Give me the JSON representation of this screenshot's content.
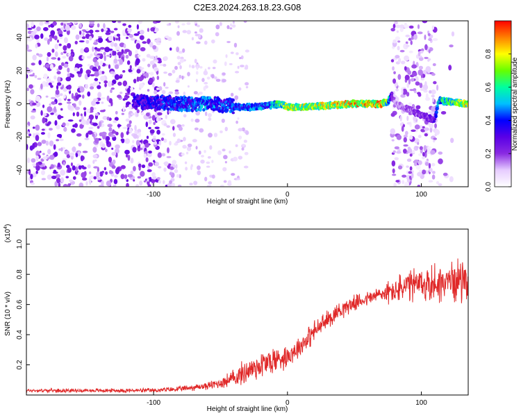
{
  "figure": {
    "title": "C2E3.2024.263.18.23.G08"
  },
  "chart_data": [
    {
      "type": "heatmap",
      "title": "C2E3.2024.263.18.23.G08",
      "xlabel": "Height of straight line (km)",
      "ylabel": "Frequency (Hz)",
      "xlim": [
        -195,
        135
      ],
      "ylim": [
        -50,
        50
      ],
      "x_ticks": [
        -100,
        0,
        100
      ],
      "y_ticks": [
        -40,
        -20,
        0,
        20,
        40
      ],
      "colorbar": {
        "label": "Normalized spectral amplitude",
        "range": [
          0,
          1
        ],
        "ticks": [
          0.0,
          0.2,
          0.4,
          0.6,
          0.8
        ],
        "tick_labels": [
          "0.0",
          "0.2",
          "0.4",
          "0.6",
          "0.8"
        ],
        "colormap": [
          "#ffffff",
          "#e6ccff",
          "#8a2be2",
          "#5a00e6",
          "#0000ff",
          "#00bfff",
          "#00ffa0",
          "#66ff00",
          "#ffff00",
          "#ff8000",
          "#ff0000"
        ]
      },
      "signal_track": {
        "x": [
          -115,
          -100,
          -80,
          -60,
          -45,
          -35,
          -25,
          -15,
          -5,
          0,
          10,
          30,
          50,
          70,
          75,
          78,
          80,
          110,
          113,
          135
        ],
        "y": [
          1,
          1,
          0,
          0,
          -1,
          -2,
          -2,
          -1,
          0,
          -2,
          -2,
          -1,
          0,
          0,
          1,
          5,
          0,
          -10,
          2,
          0
        ],
        "amplitude": [
          0.35,
          0.4,
          0.45,
          0.5,
          0.45,
          0.45,
          0.5,
          0.5,
          0.7,
          0.8,
          0.8,
          0.85,
          0.9,
          0.95,
          0.7,
          0.3,
          0.15,
          0.3,
          0.6,
          0.85
        ]
      },
      "noise_regions": [
        {
          "x": [
            -195,
            -95
          ],
          "amplitude": 0.2
        },
        {
          "x": [
            78,
            111
          ],
          "amplitude": 0.15
        }
      ]
    },
    {
      "type": "line",
      "xlabel": "Height of straight line (km)",
      "ylabel": "SNR (10 * v/v)",
      "y_multiplier": "(x10",
      "y_multiplier_exp": "4",
      "y_multiplier_close": ")",
      "xlim": [
        -195,
        135
      ],
      "ylim": [
        0,
        1.1
      ],
      "x_ticks": [
        -100,
        0,
        100
      ],
      "y_ticks": [
        0.2,
        0.4,
        0.6,
        0.8,
        1.0
      ],
      "y_tick_labels": [
        "0.2",
        "0.4",
        "0.6",
        "0.8",
        "1.0"
      ],
      "series": [
        {
          "color": "#e02828",
          "x": [
            -195,
            -150,
            -100,
            -80,
            -60,
            -50,
            -40,
            -30,
            -20,
            -10,
            0,
            10,
            20,
            30,
            40,
            50,
            60,
            70,
            80,
            90,
            100,
            110,
            120,
            135
          ],
          "y": [
            0.03,
            0.03,
            0.03,
            0.04,
            0.06,
            0.08,
            0.11,
            0.16,
            0.2,
            0.23,
            0.26,
            0.33,
            0.42,
            0.5,
            0.57,
            0.61,
            0.64,
            0.67,
            0.69,
            0.72,
            0.73,
            0.74,
            0.75,
            0.78
          ],
          "noise_amplitude": [
            0.01,
            0.01,
            0.012,
            0.015,
            0.02,
            0.03,
            0.05,
            0.07,
            0.08,
            0.08,
            0.06,
            0.06,
            0.06,
            0.05,
            0.05,
            0.04,
            0.04,
            0.05,
            0.07,
            0.09,
            0.1,
            0.11,
            0.1,
            0.12
          ]
        }
      ]
    }
  ]
}
